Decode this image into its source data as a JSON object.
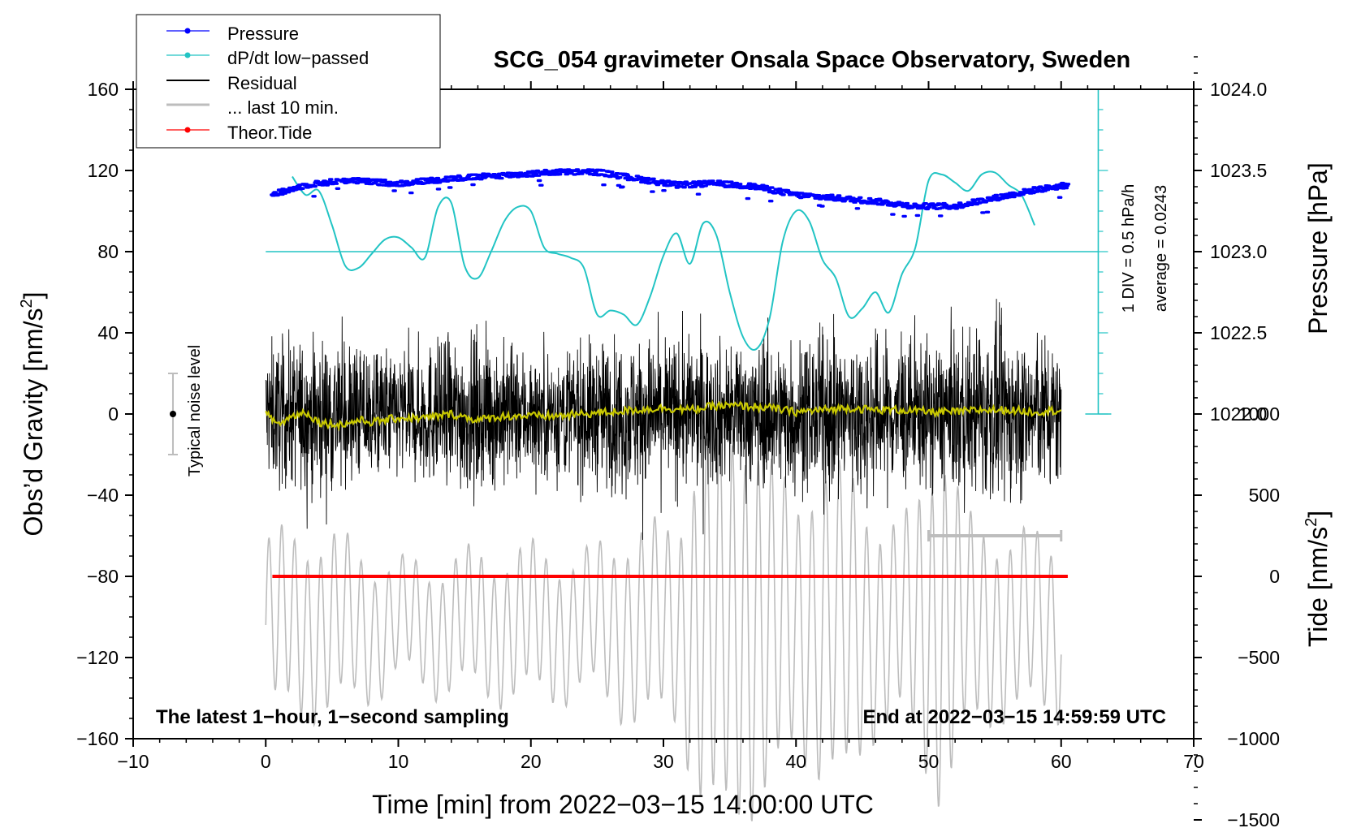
{
  "chart_data": {
    "type": "line",
    "title": "SCG_054 gravimeter Onsala Space Observatory, Sweden",
    "xlabel": "Time [min] from 2022−03−15 14:00:00 UTC",
    "ylabel_left": "Obs’d Gravity [nm/s",
    "ylabel_left_sup": "2",
    "ylabel_left_close": "]",
    "ylabel_right_top": "Pressure [hPa]",
    "ylabel_right_bottom": "Tide [nm/s",
    "ylabel_right_bottom_sup": "2",
    "ylabel_right_bottom_close": "]",
    "xlim": [
      -10,
      70
    ],
    "x_ticks": [
      -10,
      0,
      10,
      20,
      30,
      40,
      50,
      60,
      70
    ],
    "x_tick_labels": [
      "−10",
      "0",
      "10",
      "20",
      "30",
      "40",
      "50",
      "60",
      "70"
    ],
    "ylim_left": [
      -160,
      160
    ],
    "y_left_ticks": [
      160,
      120,
      80,
      40,
      0,
      -40,
      -80,
      -120,
      -160
    ],
    "y_left_tick_labels": [
      "160",
      "120",
      "80",
      "40",
      "0",
      "−40",
      "−80",
      "−120",
      "−160"
    ],
    "pressure_axis": {
      "range": [
        1021.5,
        1024.5
      ],
      "ticks": [
        1024.0,
        1023.5,
        1023.0,
        1022.5,
        1022.0
      ],
      "tick_labels": [
        "1024.0",
        "1023.5",
        "1023.0",
        "1022.5",
        "1022.0"
      ]
    },
    "tide_axis": {
      "range": [
        -1500,
        1500
      ],
      "ticks": [
        1000,
        500,
        0,
        -500,
        -1000,
        -1500
      ],
      "tick_labels": [
        "1000",
        "500",
        "0",
        "−500",
        "−1000",
        "−1500"
      ]
    },
    "legend": {
      "placement": "top-left",
      "entries": [
        {
          "label": "Pressure",
          "color": "#0000ff",
          "marker": true
        },
        {
          "label": "dP/dt low−passed",
          "color": "#22c4c4",
          "marker": true
        },
        {
          "label": "Residual",
          "color": "#000000",
          "marker": false
        },
        {
          "label": "... last 10 min.",
          "color": "#bdbdbd",
          "marker": false
        },
        {
          "label": "Theor.Tide",
          "color": "#ff0000",
          "marker": true
        }
      ]
    },
    "dpdt_scale": {
      "label_div": "1 DIV = 0.5 hPa/h",
      "label_avg": "average = 0.0243",
      "zero_level_gravity": 80,
      "bar_x_min": 62.8,
      "bar_top_gravity": 160,
      "bar_bottom_gravity": 0
    },
    "noise_level": {
      "label": "Typical noise level",
      "x_min": -7,
      "center": 0,
      "half_range": 20
    },
    "last10_bar": {
      "x_start": 50,
      "x_end": 60,
      "gravity": -60
    },
    "annotation_left": "The latest 1−hour, 1−second sampling",
    "annotation_right": "End at 2022−03−15 14:59:59 UTC",
    "series": [
      {
        "name": "Pressure",
        "axis": "pressure",
        "color": "#0000ff",
        "x": [
          0.5,
          3,
          6,
          10,
          14,
          18,
          22,
          25,
          28,
          31,
          34,
          37,
          40,
          43,
          46,
          49,
          52,
          55,
          58,
          60.5
        ],
        "y": [
          1023.35,
          1023.41,
          1023.44,
          1023.42,
          1023.45,
          1023.47,
          1023.49,
          1023.49,
          1023.45,
          1023.41,
          1023.42,
          1023.4,
          1023.35,
          1023.33,
          1023.31,
          1023.28,
          1023.28,
          1023.33,
          1023.38,
          1023.41
        ]
      },
      {
        "name": "dP/dt low-passed",
        "axis": "gravity",
        "color": "#22c4c4",
        "x": [
          2,
          3,
          4,
          5,
          6,
          7,
          8,
          9,
          10,
          11,
          12,
          13,
          14,
          15,
          16,
          17,
          18,
          19,
          20,
          21,
          22,
          23,
          24,
          25,
          26,
          27,
          28,
          29,
          30,
          31,
          32,
          33,
          34,
          35,
          36,
          37,
          38,
          39,
          40,
          41,
          42,
          43,
          44,
          45,
          46,
          47,
          48,
          49,
          50,
          51,
          52,
          53,
          54,
          55,
          56,
          57,
          58
        ],
        "y": [
          117,
          108,
          110,
          93,
          73,
          72,
          79,
          86,
          87,
          82,
          77,
          102,
          104,
          73,
          67,
          80,
          95,
          102,
          100,
          82,
          79,
          77,
          72,
          49,
          51,
          49,
          44,
          58,
          78,
          89,
          74,
          94,
          88,
          60,
          38,
          32,
          47,
          85,
          100,
          95,
          76,
          67,
          48,
          52,
          60,
          50,
          69,
          82,
          115,
          118,
          114,
          110,
          118,
          119,
          113,
          108,
          93
        ]
      },
      {
        "name": "Residual",
        "axis": "gravity",
        "color": "#000000",
        "x_range": [
          0,
          60
        ],
        "amplitude": 25,
        "envelope": [
          [
            0,
            24
          ],
          [
            5,
            27
          ],
          [
            10,
            22
          ],
          [
            15,
            27
          ],
          [
            20,
            22
          ],
          [
            25,
            25
          ],
          [
            30,
            27
          ],
          [
            35,
            24
          ],
          [
            40,
            26
          ],
          [
            45,
            28
          ],
          [
            50,
            25
          ],
          [
            55,
            30
          ],
          [
            60,
            25
          ]
        ]
      },
      {
        "name": "Residual smoothed",
        "axis": "gravity",
        "color": "#c8c800",
        "x": [
          0,
          1,
          2,
          3,
          4,
          5,
          6,
          7,
          8,
          10,
          12,
          14,
          16,
          18,
          20,
          22,
          24,
          26,
          28,
          30,
          32,
          34,
          36,
          38,
          40,
          42,
          44,
          46,
          48,
          50,
          52,
          54,
          56,
          58,
          60
        ],
        "y": [
          0,
          -5,
          -1,
          1,
          -4,
          -5,
          -5,
          -3,
          -4,
          -2,
          -2,
          0,
          -3,
          -1,
          -1,
          -1,
          0,
          1,
          2,
          3,
          2,
          4,
          4,
          3,
          1,
          2,
          3,
          2,
          2,
          1,
          1,
          2,
          2,
          1,
          2
        ]
      },
      {
        "name": "... last 10 min.",
        "axis": "tide",
        "color": "#bdbdbd",
        "x_range": [
          0,
          60
        ],
        "period_min": 1.0,
        "center": -300,
        "envelope": [
          [
            0,
            500
          ],
          [
            5,
            500
          ],
          [
            10,
            320
          ],
          [
            15,
            380
          ],
          [
            20,
            420
          ],
          [
            24,
            380
          ],
          [
            28,
            550
          ],
          [
            31,
            550
          ],
          [
            33,
            1100
          ],
          [
            37,
            1100
          ],
          [
            40,
            700
          ],
          [
            42,
            900
          ],
          [
            44,
            900
          ],
          [
            46,
            600
          ],
          [
            48,
            550
          ],
          [
            51,
            1050
          ],
          [
            53,
            600
          ],
          [
            56,
            500
          ],
          [
            60,
            500
          ]
        ]
      },
      {
        "name": "Theor.Tide",
        "axis": "tide",
        "color": "#ff0000",
        "x": [
          0.5,
          60.5
        ],
        "y": [
          0,
          0
        ]
      }
    ]
  }
}
